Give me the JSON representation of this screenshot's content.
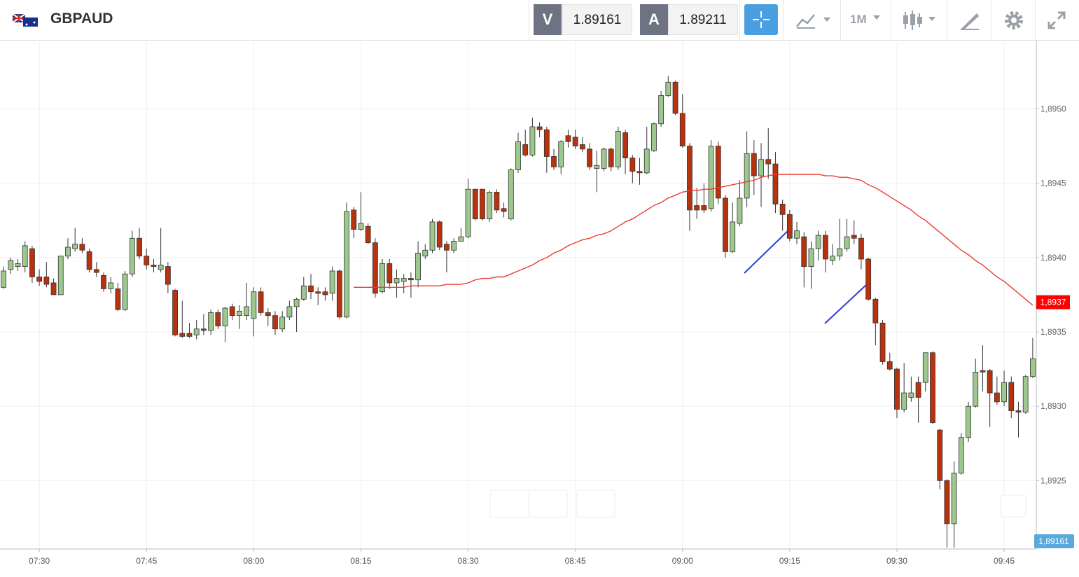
{
  "header": {
    "symbol": "GBPAUD",
    "sell_label": "V",
    "sell_price": 1.89161,
    "buy_label": "A",
    "buy_price": 1.89211,
    "timeframe": "1M"
  },
  "chart_data": {
    "type": "candlestick",
    "categories": [
      null,
      null,
      null,
      null,
      null,
      "07:30",
      null,
      null,
      null,
      null,
      null,
      null,
      null,
      null,
      null,
      null,
      null,
      null,
      null,
      null,
      "07:45",
      null,
      null,
      null,
      null,
      null,
      null,
      null,
      null,
      null,
      null,
      null,
      null,
      null,
      null,
      "08:00",
      null,
      null,
      null,
      null,
      null,
      null,
      null,
      null,
      null,
      null,
      null,
      null,
      null,
      null,
      "08:15",
      null,
      null,
      null,
      null,
      null,
      null,
      null,
      null,
      null,
      null,
      null,
      null,
      null,
      null,
      "08:30",
      null,
      null,
      null,
      null,
      null,
      null,
      null,
      null,
      null,
      null,
      null,
      null,
      null,
      null,
      "08:45",
      null,
      null,
      null,
      null,
      null,
      null,
      null,
      null,
      null,
      null,
      null,
      null,
      null,
      null,
      "09:00",
      null,
      null,
      null,
      null,
      null,
      null,
      null,
      null,
      null,
      null,
      null,
      null,
      null,
      null,
      "09:15",
      null,
      null,
      null,
      null,
      null,
      null,
      null,
      null,
      null,
      null,
      null,
      null,
      null,
      null,
      "09:30",
      null,
      null,
      null,
      null,
      null,
      null,
      null,
      null,
      null,
      null,
      null,
      null,
      null,
      null,
      "09:45",
      null,
      null,
      null,
      null
    ],
    "open": [
      1.8938,
      1.89392,
      1.89394,
      1.89394,
      1.89406,
      1.89387,
      1.89387,
      1.89383,
      1.89375,
      1.89401,
      1.89406,
      1.89409,
      1.89404,
      1.89392,
      1.89388,
      1.89379,
      1.89379,
      1.89365,
      1.89389,
      1.89413,
      1.89401,
      1.89395,
      1.89392,
      1.89394,
      1.89378,
      1.89349,
      1.89349,
      1.89348,
      1.89352,
      1.89351,
      1.89363,
      1.89354,
      1.89367,
      1.89361,
      1.89361,
      1.89359,
      1.89377,
      1.89363,
      1.89361,
      1.89352,
      1.8936,
      1.89367,
      1.89372,
      1.89381,
      1.89377,
      1.89377,
      1.89376,
      1.89391,
      1.8936,
      1.89432,
      1.89419,
      1.89421,
      1.8941,
      1.89377,
      1.89396,
      1.89383,
      1.89384,
      1.89386,
      1.89385,
      1.89401,
      1.89405,
      1.89424,
      1.89409,
      1.89405,
      1.89411,
      1.89414,
      1.89446,
      1.89446,
      1.89426,
      1.89444,
      1.89433,
      1.89426,
      1.89459,
      1.89476,
      1.89469,
      1.89488,
      1.89486,
      1.89468,
      1.89461,
      1.89482,
      1.89481,
      1.89476,
      1.89473,
      1.8946,
      1.8946,
      1.89473,
      1.89461,
      1.89484,
      1.89467,
      1.89458,
      1.89457,
      1.89472,
      1.8949,
      1.89509,
      1.89518,
      1.89497,
      1.89475,
      1.89435,
      1.89435,
      1.89433,
      1.89475,
      1.8944,
      1.89404,
      1.89423,
      1.8944,
      1.8947,
      1.89455,
      1.89466,
      1.89463,
      1.89436,
      1.89429,
      1.89413,
      1.89414,
      1.89394,
      1.89406,
      1.89415,
      1.89398,
      1.89401,
      1.89406,
      1.89415,
      1.89413,
      1.89399,
      1.89372,
      1.89356,
      1.8933,
      1.89325,
      1.89298,
      1.89306,
      1.89316,
      1.89316,
      1.89336,
      1.89284,
      1.8925,
      1.89221,
      1.89255,
      1.89279,
      1.893,
      1.89324,
      1.89324,
      1.89309,
      1.89303,
      1.89316,
      1.89297,
      1.89296,
      1.8932
    ],
    "high": [
      1.89394,
      1.894,
      1.89399,
      1.89411,
      1.89408,
      1.89392,
      1.89397,
      1.89386,
      1.89401,
      1.89413,
      1.8942,
      1.89413,
      1.89406,
      1.89397,
      1.8939,
      1.89387,
      1.89383,
      1.89391,
      1.89418,
      1.8942,
      1.89406,
      1.89399,
      1.8942,
      1.89397,
      1.89379,
      1.89371,
      1.89356,
      1.89358,
      1.89362,
      1.89365,
      1.89365,
      1.89367,
      1.89369,
      1.89368,
      1.89383,
      1.8938,
      1.8938,
      1.89366,
      1.89364,
      1.89364,
      1.89371,
      1.89373,
      1.89387,
      1.89389,
      1.8938,
      1.8938,
      1.89394,
      1.89392,
      1.89437,
      1.89434,
      1.89444,
      1.89423,
      1.89413,
      1.89399,
      1.89399,
      1.89392,
      1.89389,
      1.8939,
      1.89411,
      1.89409,
      1.89426,
      1.89425,
      1.89411,
      1.89413,
      1.8942,
      1.89453,
      1.89446,
      1.89446,
      1.89445,
      1.89446,
      1.89437,
      1.8946,
      1.89484,
      1.89486,
      1.89494,
      1.89491,
      1.89488,
      1.89473,
      1.89479,
      1.89486,
      1.89486,
      1.89481,
      1.89477,
      1.89472,
      1.89474,
      1.89474,
      1.89488,
      1.89486,
      1.89469,
      1.89467,
      1.89488,
      1.89491,
      1.89512,
      1.89522,
      1.89519,
      1.8951,
      1.89477,
      1.89447,
      1.8945,
      1.89479,
      1.89478,
      1.89442,
      1.89437,
      1.89452,
      1.89485,
      1.89479,
      1.89477,
      1.89487,
      1.89471,
      1.89439,
      1.89432,
      1.89424,
      1.89417,
      1.89411,
      1.89418,
      1.89418,
      1.89409,
      1.89426,
      1.89426,
      1.89425,
      1.89416,
      1.894,
      1.89373,
      1.89358,
      1.89336,
      1.89326,
      1.89329,
      1.8932,
      1.8932,
      1.89336,
      1.89337,
      1.89285,
      1.89251,
      1.89263,
      1.89282,
      1.89303,
      1.89332,
      1.89341,
      1.89325,
      1.8932,
      1.89324,
      1.8932,
      1.89303,
      1.89321,
      1.89346
    ],
    "low": [
      1.89379,
      1.89389,
      1.89391,
      1.8939,
      1.89383,
      1.89381,
      1.8938,
      1.89375,
      1.89375,
      1.89399,
      1.89404,
      1.89403,
      1.8939,
      1.89387,
      1.89377,
      1.89376,
      1.89364,
      1.89364,
      1.89387,
      1.89399,
      1.89392,
      1.8939,
      1.8939,
      1.89376,
      1.89347,
      1.89346,
      1.89346,
      1.89345,
      1.89348,
      1.89348,
      1.89352,
      1.89343,
      1.89358,
      1.89352,
      1.89358,
      1.89347,
      1.89361,
      1.89354,
      1.89348,
      1.8935,
      1.89358,
      1.8935,
      1.89371,
      1.89372,
      1.89368,
      1.89371,
      1.89371,
      1.89359,
      1.89359,
      1.89413,
      1.89418,
      1.89409,
      1.89373,
      1.89376,
      1.89379,
      1.89373,
      1.89376,
      1.89373,
      1.8938,
      1.89399,
      1.89403,
      1.89405,
      1.8939,
      1.89403,
      1.89411,
      1.89413,
      1.89425,
      1.89425,
      1.89424,
      1.8943,
      1.89427,
      1.89425,
      1.89457,
      1.89468,
      1.89468,
      1.89481,
      1.89457,
      1.89459,
      1.89456,
      1.89474,
      1.89473,
      1.89471,
      1.89459,
      1.89444,
      1.89458,
      1.89458,
      1.89459,
      1.89456,
      1.8945,
      1.89449,
      1.89456,
      1.89471,
      1.89488,
      1.89508,
      1.89496,
      1.89474,
      1.89418,
      1.89426,
      1.8943,
      1.89431,
      1.89436,
      1.894,
      1.89403,
      1.89421,
      1.89434,
      1.89442,
      1.89434,
      1.89453,
      1.8943,
      1.89418,
      1.89411,
      1.89409,
      1.8938,
      1.89379,
      1.89398,
      1.8939,
      1.89395,
      1.89398,
      1.89404,
      1.89409,
      1.89392,
      1.89371,
      1.89341,
      1.89328,
      1.89324,
      1.89292,
      1.89296,
      1.89303,
      1.89289,
      1.8931,
      1.89288,
      1.89244,
      1.89205,
      1.89205,
      1.89254,
      1.89276,
      1.89299,
      1.8931,
      1.89286,
      1.89301,
      1.893,
      1.89292,
      1.89279,
      1.89295,
      1.89319
    ],
    "close": [
      1.89391,
      1.89398,
      1.89396,
      1.89408,
      1.89387,
      1.89384,
      1.89382,
      1.89375,
      1.89401,
      1.89407,
      1.89409,
      1.89405,
      1.89392,
      1.8939,
      1.89379,
      1.89383,
      1.89365,
      1.89389,
      1.89413,
      1.89401,
      1.89395,
      1.89394,
      1.89395,
      1.89382,
      1.89348,
      1.89347,
      1.89347,
      1.89352,
      1.89351,
      1.89363,
      1.89354,
      1.89366,
      1.89361,
      1.89364,
      1.89367,
      1.89377,
      1.89363,
      1.89361,
      1.89352,
      1.8936,
      1.89367,
      1.89372,
      1.89381,
      1.89377,
      1.89376,
      1.89375,
      1.89391,
      1.8936,
      1.89431,
      1.89419,
      1.89423,
      1.8941,
      1.89376,
      1.89396,
      1.89383,
      1.89386,
      1.89386,
      1.89385,
      1.89403,
      1.89405,
      1.89424,
      1.89407,
      1.89405,
      1.89411,
      1.89414,
      1.89446,
      1.89426,
      1.89426,
      1.89444,
      1.89432,
      1.89431,
      1.89459,
      1.89478,
      1.89469,
      1.89488,
      1.89486,
      1.89468,
      1.89461,
      1.89478,
      1.89478,
      1.89475,
      1.89473,
      1.89461,
      1.89462,
      1.89473,
      1.89461,
      1.89485,
      1.89467,
      1.89458,
      1.89457,
      1.89473,
      1.8949,
      1.89509,
      1.89518,
      1.89497,
      1.89475,
      1.89432,
      1.89432,
      1.89432,
      1.89475,
      1.8944,
      1.89404,
      1.89424,
      1.8944,
      1.8947,
      1.89455,
      1.89466,
      1.89463,
      1.89436,
      1.89429,
      1.89413,
      1.89418,
      1.89394,
      1.89406,
      1.89415,
      1.89399,
      1.89401,
      1.89406,
      1.89414,
      1.89413,
      1.89399,
      1.89372,
      1.89356,
      1.8933,
      1.89325,
      1.89298,
      1.89309,
      1.89309,
      1.89306,
      1.89336,
      1.89289,
      1.8925,
      1.89221,
      1.89255,
      1.89279,
      1.893,
      1.89323,
      1.89323,
      1.89309,
      1.89303,
      1.89316,
      1.89297,
      1.89296,
      1.8932,
      1.89332
    ],
    "up_color": "#9dc88d",
    "down_color": "#b8320e",
    "overlay": {
      "color": "#ef3b32",
      "values": [
        null,
        null,
        null,
        null,
        null,
        null,
        null,
        null,
        null,
        null,
        null,
        null,
        null,
        null,
        null,
        null,
        null,
        null,
        null,
        null,
        null,
        null,
        null,
        null,
        null,
        null,
        null,
        null,
        null,
        null,
        null,
        null,
        null,
        null,
        null,
        null,
        null,
        null,
        null,
        null,
        null,
        null,
        null,
        null,
        null,
        null,
        null,
        null,
        null,
        1.8938,
        1.8938,
        1.8938,
        1.8938,
        1.8938,
        1.8938,
        1.8938,
        1.8938,
        1.89381,
        1.89381,
        1.89381,
        1.89381,
        1.89381,
        1.89382,
        1.89382,
        1.89382,
        1.89383,
        1.89385,
        1.89386,
        1.89386,
        1.89387,
        1.89387,
        1.89389,
        1.89391,
        1.89393,
        1.89395,
        1.89398,
        1.894,
        1.89403,
        1.89405,
        1.89408,
        1.8941,
        1.89412,
        1.89413,
        1.89415,
        1.89416,
        1.89418,
        1.89421,
        1.89424,
        1.89426,
        1.89429,
        1.89432,
        1.89435,
        1.89437,
        1.8944,
        1.89442,
        1.89444,
        1.89445,
        1.89445,
        1.89446,
        1.89446,
        1.89447,
        1.89448,
        1.89449,
        1.8945,
        1.89451,
        1.89452,
        1.89454,
        1.89455,
        1.89456,
        1.89456,
        1.89456,
        1.89456,
        1.89456,
        1.89456,
        1.89456,
        1.89455,
        1.89455,
        1.89454,
        1.89454,
        1.89453,
        1.89452,
        1.89449,
        1.89447,
        1.89444,
        1.89441,
        1.89438,
        1.89435,
        1.89432,
        1.89428,
        1.89425,
        1.89421,
        1.89417,
        1.89413,
        1.89409,
        1.89405,
        1.89402,
        1.89398,
        1.89395,
        1.89391,
        1.89387,
        1.89384,
        1.8938,
        1.89376,
        1.89372,
        1.89368
      ],
      "tag": {
        "value": 1.8937,
        "label": "1,8937"
      }
    },
    "bid_tag": {
      "value": 1.89161,
      "label": "1,89161"
    },
    "ylim": [
      1.89204,
      1.89545
    ],
    "yticks": [
      {
        "value": 1.8925,
        "label": "1,8925"
      },
      {
        "value": 1.893,
        "label": "1,8930"
      },
      {
        "value": 1.8935,
        "label": "1,8935"
      },
      {
        "value": 1.894,
        "label": "1,8940"
      },
      {
        "value": 1.8945,
        "label": "1,8945"
      },
      {
        "value": 1.895,
        "label": "1,8950"
      }
    ],
    "grid": true
  }
}
